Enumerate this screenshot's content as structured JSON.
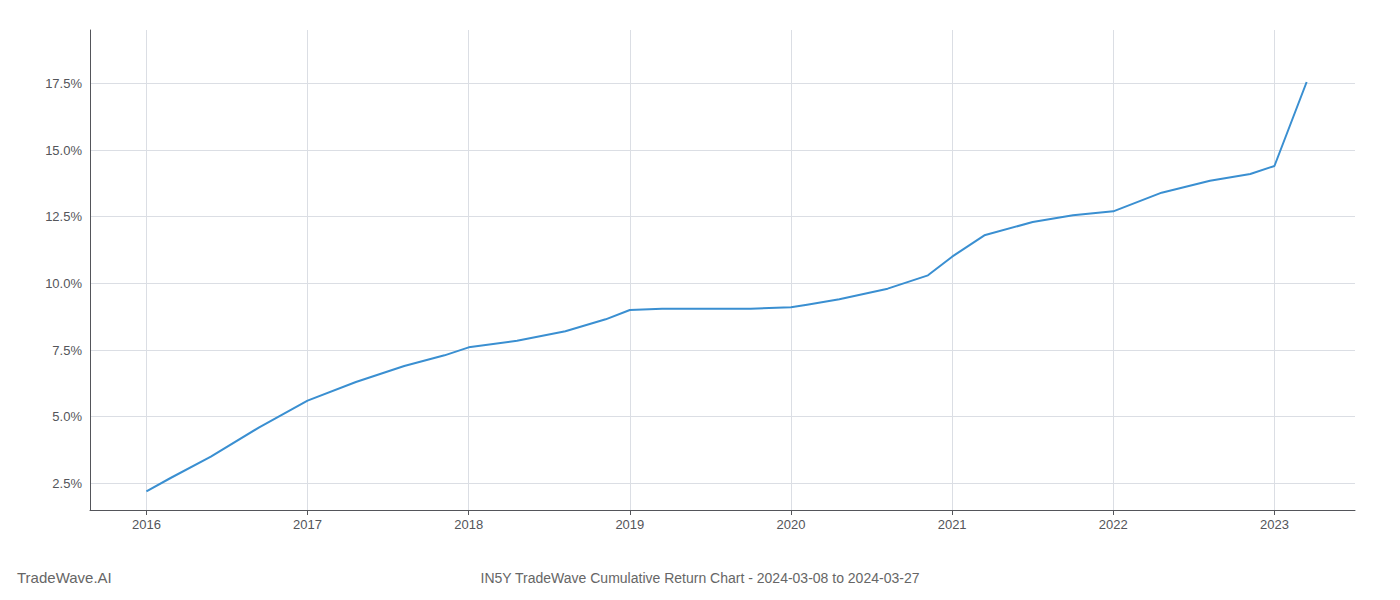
{
  "chart_data": {
    "type": "line",
    "title": "IN5Y TradeWave Cumulative Return Chart - 2024-03-08 to 2024-03-27",
    "annotations": [
      "TradeWave.AI"
    ],
    "color": "#3a8fd1",
    "x": [
      2016.0,
      2016.15,
      2016.4,
      2016.7,
      2017.0,
      2017.3,
      2017.6,
      2017.85,
      2018.0,
      2018.3,
      2018.6,
      2018.85,
      2019.0,
      2019.2,
      2019.5,
      2019.75,
      2020.0,
      2020.1,
      2020.3,
      2020.6,
      2020.85,
      2021.0,
      2021.2,
      2021.5,
      2021.75,
      2022.0,
      2022.3,
      2022.6,
      2022.85,
      2023.0,
      2023.2
    ],
    "values": [
      2.2,
      2.7,
      3.5,
      4.6,
      5.6,
      6.3,
      6.9,
      7.3,
      7.6,
      7.85,
      8.2,
      8.65,
      9.0,
      9.05,
      9.05,
      9.05,
      9.1,
      9.2,
      9.4,
      9.8,
      10.3,
      11.0,
      11.8,
      12.3,
      12.55,
      12.7,
      13.4,
      13.85,
      14.1,
      14.4,
      17.55
    ],
    "xlim": [
      2015.65,
      2023.5
    ],
    "ylim": [
      1.5,
      19.5
    ],
    "xticks": [
      2016,
      2017,
      2018,
      2019,
      2020,
      2021,
      2022,
      2023
    ],
    "yticks": [
      {
        "value": 2.5,
        "label": "2.5%"
      },
      {
        "value": 5.0,
        "label": "5.0%"
      },
      {
        "value": 7.5,
        "label": "7.5%"
      },
      {
        "value": 10.0,
        "label": "10.0%"
      },
      {
        "value": 12.5,
        "label": "12.5%"
      },
      {
        "value": 15.0,
        "label": "15.0%"
      },
      {
        "value": 17.5,
        "label": "17.5%"
      }
    ],
    "grid": true
  }
}
